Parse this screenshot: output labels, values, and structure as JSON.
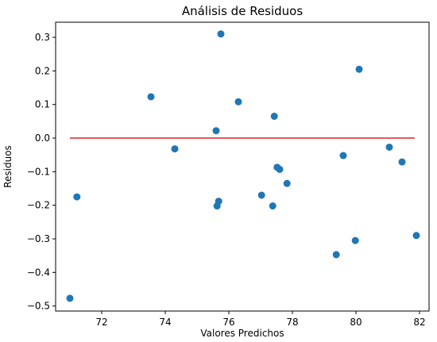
{
  "chart_data": {
    "type": "scatter",
    "title": "Análisis de Residuos",
    "xlabel": "Valores Predichos",
    "ylabel": "Residuos",
    "xlim": [
      70.55,
      82.3
    ],
    "ylim": [
      -0.515,
      0.345
    ],
    "x_ticks": [
      72,
      74,
      76,
      78,
      80,
      82
    ],
    "y_ticks": [
      -0.5,
      -0.4,
      -0.3,
      -0.2,
      -0.1,
      0.0,
      0.1,
      0.2,
      0.3
    ],
    "x_tick_labels": [
      "72",
      "74",
      "76",
      "78",
      "80",
      "82"
    ],
    "y_tick_labels": [
      "−0.5",
      "−0.4",
      "−0.3",
      "−0.2",
      "−0.1",
      "0.0",
      "0.1",
      "0.2",
      "0.3"
    ],
    "grid": false,
    "point_color": "#1f77b4",
    "reference_line": {
      "y": 0.0,
      "x_from": 71.0,
      "x_to": 81.85,
      "color": "#d62728"
    },
    "series": [
      {
        "x": [
          75.75,
          80.1,
          73.55,
          76.3,
          77.43,
          75.6,
          81.05,
          74.3,
          79.6,
          81.45,
          77.52,
          77.6,
          77.83,
          71.22,
          75.68,
          77.03,
          75.63,
          77.38,
          81.9,
          79.98,
          79.38,
          71.0
        ],
        "y": [
          0.31,
          0.205,
          0.123,
          0.108,
          0.065,
          0.022,
          -0.027,
          -0.032,
          -0.052,
          -0.071,
          -0.087,
          -0.093,
          -0.135,
          -0.175,
          -0.188,
          -0.17,
          -0.202,
          -0.202,
          -0.29,
          -0.305,
          -0.347,
          -0.477
        ]
      }
    ]
  }
}
